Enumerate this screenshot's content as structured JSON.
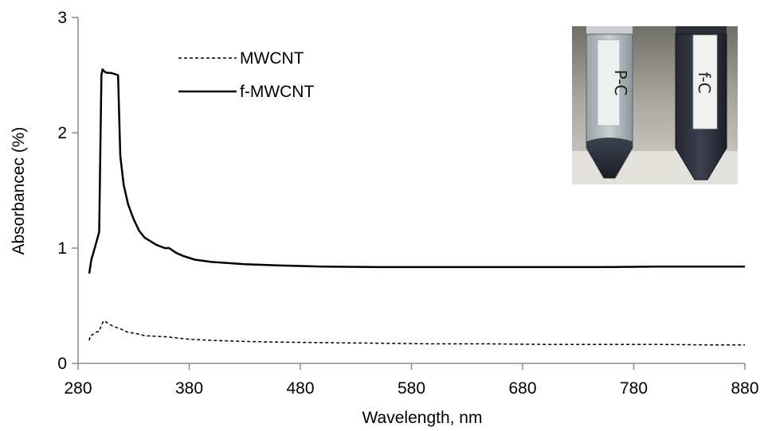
{
  "chart_data": {
    "type": "line",
    "title": "",
    "xlabel": "Wavelength, nm",
    "ylabel": "Absorbancec (%)",
    "xlim": [
      280,
      880
    ],
    "ylim": [
      0,
      3
    ],
    "xticks": [
      280,
      380,
      480,
      580,
      680,
      780,
      880
    ],
    "yticks": [
      0,
      1,
      2,
      3
    ],
    "grid": false,
    "legend_position": "top-left",
    "series": [
      {
        "name": "MWCNT",
        "style": "dashed",
        "color": "#000000",
        "x": [
          290,
          291,
          293,
          296,
          299,
          301,
          303,
          305,
          308,
          312,
          318,
          325,
          332,
          340,
          350,
          360,
          370,
          380,
          400,
          430,
          460,
          500,
          550,
          600,
          650,
          700,
          750,
          800,
          850,
          880
        ],
        "y": [
          0.2,
          0.24,
          0.25,
          0.27,
          0.28,
          0.33,
          0.37,
          0.36,
          0.34,
          0.32,
          0.3,
          0.27,
          0.26,
          0.24,
          0.235,
          0.23,
          0.22,
          0.21,
          0.2,
          0.19,
          0.185,
          0.18,
          0.175,
          0.17,
          0.17,
          0.165,
          0.165,
          0.165,
          0.16,
          0.16
        ]
      },
      {
        "name": "f-MWCNT",
        "style": "solid",
        "color": "#000000",
        "x": [
          290,
          292,
          295,
          299,
          301,
          302,
          304,
          306,
          309,
          313,
          316,
          318,
          321,
          325,
          330,
          335,
          340,
          350,
          358,
          362,
          368,
          375,
          385,
          400,
          430,
          460,
          500,
          550,
          600,
          650,
          700,
          750,
          800,
          850,
          880
        ],
        "y": [
          0.78,
          0.9,
          1.0,
          1.14,
          2.5,
          2.55,
          2.53,
          2.52,
          2.52,
          2.51,
          2.5,
          1.8,
          1.55,
          1.38,
          1.25,
          1.15,
          1.09,
          1.03,
          1.0,
          1.0,
          0.96,
          0.93,
          0.9,
          0.88,
          0.86,
          0.85,
          0.84,
          0.835,
          0.835,
          0.835,
          0.835,
          0.835,
          0.84,
          0.84,
          0.84
        ]
      }
    ],
    "inset": {
      "labels": [
        "P-C",
        "f-C"
      ]
    }
  }
}
